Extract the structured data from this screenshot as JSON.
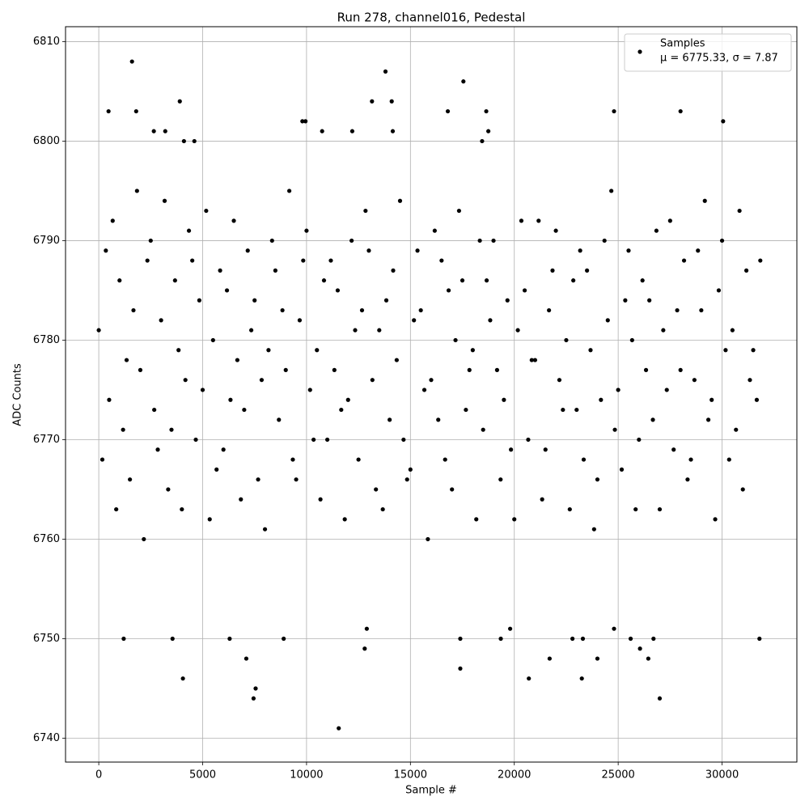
{
  "chart_data": {
    "type": "scatter",
    "title": "Run 278, channel016, Pedestal",
    "xlabel": "Sample #",
    "ylabel": "ADC Counts",
    "xlim": [
      -1600,
      33600
    ],
    "ylim": [
      6737.6,
      6811.5
    ],
    "xticks": [
      0,
      5000,
      10000,
      15000,
      20000,
      25000,
      30000
    ],
    "yticks": [
      6740,
      6750,
      6760,
      6770,
      6780,
      6790,
      6800,
      6810
    ],
    "grid": true,
    "legend": "upper right",
    "x": [
      0,
      170,
      340,
      500,
      670,
      840,
      1000,
      1170,
      1340,
      1500,
      1670,
      1840,
      2000,
      2170,
      2340,
      2500,
      2670,
      2840,
      3000,
      3170,
      3340,
      3500,
      3670,
      3840,
      4000,
      4170,
      4340,
      4500,
      4670,
      4840,
      5000,
      5170,
      5340,
      5500,
      5670,
      5840,
      6000,
      6170,
      6340,
      6500,
      6670,
      6840,
      7000,
      7170,
      7340,
      7500,
      7670,
      7840,
      8000,
      8170,
      8340,
      8500,
      8670,
      8840,
      9000,
      9170,
      9340,
      9500,
      9670,
      9840,
      10000,
      10170,
      10340,
      10500,
      10670,
      10840,
      11000,
      11170,
      11340,
      11500,
      11670,
      11840,
      12000,
      12170,
      12340,
      12500,
      12670,
      12840,
      13000,
      13170,
      13340,
      13500,
      13670,
      13840,
      14000,
      14170,
      14340,
      14500,
      14670,
      14840,
      15000,
      15170,
      15340,
      15500,
      15670,
      15840,
      16000,
      16170,
      16340,
      16500,
      16670,
      16840,
      17000,
      17170,
      17340,
      17500,
      17670,
      17840,
      18000,
      18170,
      18340,
      18500,
      18670,
      18840,
      19000,
      19170,
      19340,
      19500,
      19670,
      19840,
      20000,
      20170,
      20340,
      20500,
      20670,
      20840,
      21000,
      21170,
      21340,
      21500,
      21670,
      21840,
      22000,
      22170,
      22340,
      22500,
      22670,
      22840,
      23000,
      23170,
      23340,
      23500,
      23670,
      23840,
      24000,
      24170,
      24340,
      24500,
      24670,
      24840,
      25000,
      25170,
      25340,
      25500,
      25670,
      25840,
      26000,
      26170,
      26340,
      26500,
      26670,
      26840,
      27000,
      27170,
      27340,
      27500,
      27670,
      27840,
      28000,
      28170,
      28340,
      28500,
      28670,
      28840,
      29000,
      29170,
      29340,
      29500,
      29670,
      29840,
      30000,
      30170,
      30340,
      30500,
      30670,
      30840,
      31000,
      31170,
      31340,
      31500,
      31670,
      31840,
      1600,
      13800,
      17550,
      470,
      1800,
      3900,
      13150,
      14100,
      16800,
      18650,
      24800,
      28000,
      30050,
      9800,
      9950,
      2650,
      3200,
      10750,
      12200,
      14150,
      18750,
      18450,
      4100,
      4600,
      11550,
      7450,
      27000,
      7550,
      4050,
      20700,
      23250,
      17400,
      21700,
      7100,
      24000,
      26450,
      1200,
      3550,
      6300,
      8900,
      12800,
      17400,
      19350,
      22800,
      23300,
      25600,
      26700,
      31800,
      12900,
      19800,
      24800,
      26050
    ],
    "series": [
      {
        "name": "Samples",
        "stats_label": "μ = 6775.33, σ = 7.87",
        "color": "#000000",
        "values": [
          6781,
          6768,
          6789,
          6774,
          6792,
          6763,
          6786,
          6771,
          6778,
          6766,
          6783,
          6795,
          6777,
          6760,
          6788,
          6790,
          6773,
          6769,
          6782,
          6794,
          6765,
          6771,
          6786,
          6779,
          6763,
          6776,
          6791,
          6788,
          6770,
          6784,
          6775,
          6793,
          6762,
          6780,
          6767,
          6787,
          6769,
          6785,
          6774,
          6792,
          6778,
          6764,
          6773,
          6789,
          6781,
          6784,
          6766,
          6776,
          6761,
          6779,
          6790,
          6787,
          6772,
          6783,
          6777,
          6795,
          6768,
          6766,
          6782,
          6788,
          6791,
          6775,
          6770,
          6779,
          6764,
          6786,
          6770,
          6788,
          6777,
          6785,
          6773,
          6762,
          6774,
          6790,
          6781,
          6768,
          6783,
          6793,
          6789,
          6776,
          6765,
          6781,
          6763,
          6784,
          6772,
          6787,
          6778,
          6794,
          6770,
          6766,
          6767,
          6782,
          6789,
          6783,
          6775,
          6760,
          6776,
          6791,
          6772,
          6788,
          6768,
          6785,
          6765,
          6780,
          6793,
          6786,
          6773,
          6777,
          6779,
          6762,
          6790,
          6771,
          6786,
          6782,
          6790,
          6777,
          6766,
          6774,
          6784,
          6769,
          6762,
          6781,
          6792,
          6785,
          6770,
          6778,
          6778,
          6792,
          6764,
          6769,
          6783,
          6787,
          6791,
          6776,
          6773,
          6780,
          6763,
          6786,
          6773,
          6789,
          6768,
          6787,
          6779,
          6761,
          6766,
          6774,
          6790,
          6782,
          6795,
          6771,
          6775,
          6767,
          6784,
          6789,
          6780,
          6763,
          6770,
          6786,
          6777,
          6784,
          6772,
          6791,
          6763,
          6781,
          6775,
          6792,
          6769,
          6783,
          6777,
          6788,
          6766,
          6768,
          6776,
          6789,
          6783,
          6794,
          6772,
          6774,
          6762,
          6785,
          6790,
          6779,
          6768,
          6781,
          6771,
          6793,
          6765,
          6787,
          6776,
          6779,
          6774,
          6788,
          6808,
          6807,
          6806,
          6803,
          6803,
          6804,
          6804,
          6804,
          6803,
          6803,
          6803,
          6803,
          6802,
          6802,
          6802,
          6801,
          6801,
          6801,
          6801,
          6801,
          6801,
          6800,
          6800,
          6800,
          6741,
          6744,
          6744,
          6745,
          6746,
          6746,
          6746,
          6747,
          6748,
          6748,
          6748,
          6748,
          6750,
          6750,
          6750,
          6750,
          6749,
          6750,
          6750,
          6750,
          6750,
          6750,
          6750,
          6750,
          6751,
          6751,
          6751,
          6749
        ]
      }
    ]
  }
}
